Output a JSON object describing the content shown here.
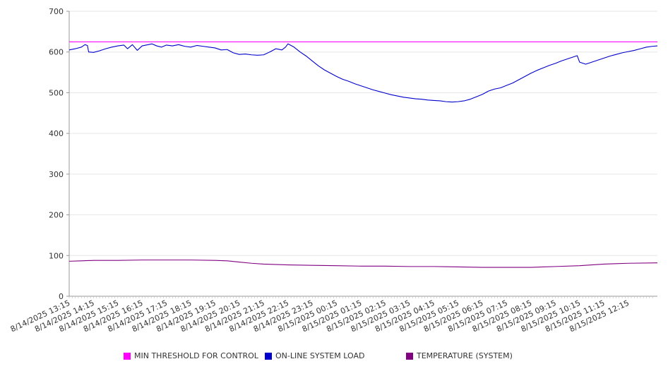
{
  "chart_data": {
    "type": "line",
    "title": "",
    "xlabel": "",
    "ylabel": "",
    "ylim": [
      0,
      700
    ],
    "y_ticks": [
      0,
      100,
      200,
      300,
      400,
      500,
      600,
      700
    ],
    "grid": "horizontal",
    "legend_position": "bottom",
    "x_categories": [
      "8/14/2025 13:15",
      "8/14/2025 14:15",
      "8/14/2025 15:15",
      "8/14/2025 16:15",
      "8/14/2025 17:15",
      "8/14/2025 18:15",
      "8/14/2025 19:15",
      "8/14/2025 20:15",
      "8/14/2025 21:15",
      "8/14/2025 22:15",
      "8/14/2025 23:15",
      "8/15/2025 00:15",
      "8/15/2025 01:15",
      "8/15/2025 02:15",
      "8/15/2025 03:15",
      "8/15/2025 04:15",
      "8/15/2025 05:15",
      "8/15/2025 06:15",
      "8/15/2025 07:15",
      "8/15/2025 08:15",
      "8/15/2025 09:15",
      "8/15/2025 10:15",
      "8/15/2025 11:15",
      "8/15/2025 12:15"
    ],
    "series": [
      {
        "name": "MIN THRESHOLD FOR CONTROL",
        "color": "#ff00ff",
        "points": [
          [
            0,
            625
          ],
          [
            24.2,
            625
          ]
        ]
      },
      {
        "name": "ON-LINE SYSTEM LOAD",
        "color": "#0000cc",
        "points": [
          [
            0,
            605
          ],
          [
            0.25,
            608
          ],
          [
            0.5,
            612
          ],
          [
            0.65,
            618
          ],
          [
            0.75,
            616
          ],
          [
            0.8,
            600
          ],
          [
            1.0,
            599
          ],
          [
            1.25,
            603
          ],
          [
            1.5,
            608
          ],
          [
            1.75,
            612
          ],
          [
            2.0,
            615
          ],
          [
            2.25,
            617
          ],
          [
            2.4,
            608
          ],
          [
            2.6,
            618
          ],
          [
            2.8,
            604
          ],
          [
            3.0,
            615
          ],
          [
            3.25,
            618
          ],
          [
            3.4,
            620
          ],
          [
            3.6,
            615
          ],
          [
            3.8,
            612
          ],
          [
            4.0,
            617
          ],
          [
            4.25,
            615
          ],
          [
            4.5,
            618
          ],
          [
            4.75,
            614
          ],
          [
            5.0,
            612
          ],
          [
            5.25,
            616
          ],
          [
            5.5,
            614
          ],
          [
            5.75,
            612
          ],
          [
            6.0,
            610
          ],
          [
            6.25,
            605
          ],
          [
            6.5,
            606
          ],
          [
            6.75,
            598
          ],
          [
            7.0,
            594
          ],
          [
            7.25,
            595
          ],
          [
            7.5,
            593
          ],
          [
            7.75,
            592
          ],
          [
            8.0,
            593
          ],
          [
            8.25,
            600
          ],
          [
            8.5,
            608
          ],
          [
            8.75,
            605
          ],
          [
            8.9,
            612
          ],
          [
            9.0,
            620
          ],
          [
            9.25,
            612
          ],
          [
            9.5,
            600
          ],
          [
            9.75,
            590
          ],
          [
            10.0,
            578
          ],
          [
            10.25,
            566
          ],
          [
            10.5,
            556
          ],
          [
            10.75,
            548
          ],
          [
            11.0,
            540
          ],
          [
            11.25,
            533
          ],
          [
            11.5,
            528
          ],
          [
            11.75,
            522
          ],
          [
            12.0,
            517
          ],
          [
            12.25,
            512
          ],
          [
            12.5,
            507
          ],
          [
            12.75,
            503
          ],
          [
            13.0,
            499
          ],
          [
            13.25,
            495
          ],
          [
            13.5,
            492
          ],
          [
            13.75,
            489
          ],
          [
            14.0,
            487
          ],
          [
            14.25,
            485
          ],
          [
            14.5,
            484
          ],
          [
            14.75,
            482
          ],
          [
            15.0,
            481
          ],
          [
            15.25,
            480
          ],
          [
            15.5,
            478
          ],
          [
            15.75,
            477
          ],
          [
            16.0,
            478
          ],
          [
            16.25,
            480
          ],
          [
            16.5,
            484
          ],
          [
            16.75,
            490
          ],
          [
            17.0,
            496
          ],
          [
            17.25,
            504
          ],
          [
            17.5,
            509
          ],
          [
            17.75,
            512
          ],
          [
            18.0,
            518
          ],
          [
            18.25,
            524
          ],
          [
            18.5,
            532
          ],
          [
            18.75,
            540
          ],
          [
            19.0,
            548
          ],
          [
            19.25,
            555
          ],
          [
            19.5,
            561
          ],
          [
            19.75,
            567
          ],
          [
            20.0,
            572
          ],
          [
            20.25,
            578
          ],
          [
            20.5,
            583
          ],
          [
            20.75,
            588
          ],
          [
            20.9,
            591
          ],
          [
            21.0,
            575
          ],
          [
            21.25,
            570
          ],
          [
            21.5,
            575
          ],
          [
            21.75,
            580
          ],
          [
            22.0,
            585
          ],
          [
            22.25,
            590
          ],
          [
            22.5,
            594
          ],
          [
            22.75,
            598
          ],
          [
            23.0,
            601
          ],
          [
            23.25,
            604
          ],
          [
            23.5,
            608
          ],
          [
            23.75,
            612
          ],
          [
            24.0,
            614
          ],
          [
            24.2,
            615
          ]
        ]
      },
      {
        "name": "TEMPERATURE (SYSTEM)",
        "color": "#800080",
        "points": [
          [
            0,
            86
          ],
          [
            0.5,
            87
          ],
          [
            1.0,
            88
          ],
          [
            2.0,
            88
          ],
          [
            3.0,
            89
          ],
          [
            4.0,
            89
          ],
          [
            5.0,
            89
          ],
          [
            6.0,
            88
          ],
          [
            6.5,
            87
          ],
          [
            7.0,
            84
          ],
          [
            7.5,
            81
          ],
          [
            8.0,
            79
          ],
          [
            9.0,
            77
          ],
          [
            10.0,
            76
          ],
          [
            11.0,
            75
          ],
          [
            12.0,
            74
          ],
          [
            13.0,
            74
          ],
          [
            14.0,
            73
          ],
          [
            15.0,
            73
          ],
          [
            16.0,
            72
          ],
          [
            17.0,
            71
          ],
          [
            18.0,
            71
          ],
          [
            19.0,
            71
          ],
          [
            19.5,
            72
          ],
          [
            20.0,
            73
          ],
          [
            21.0,
            75
          ],
          [
            21.5,
            77
          ],
          [
            22.0,
            79
          ],
          [
            22.5,
            80
          ],
          [
            23.0,
            81
          ],
          [
            24.2,
            82
          ]
        ]
      }
    ]
  }
}
